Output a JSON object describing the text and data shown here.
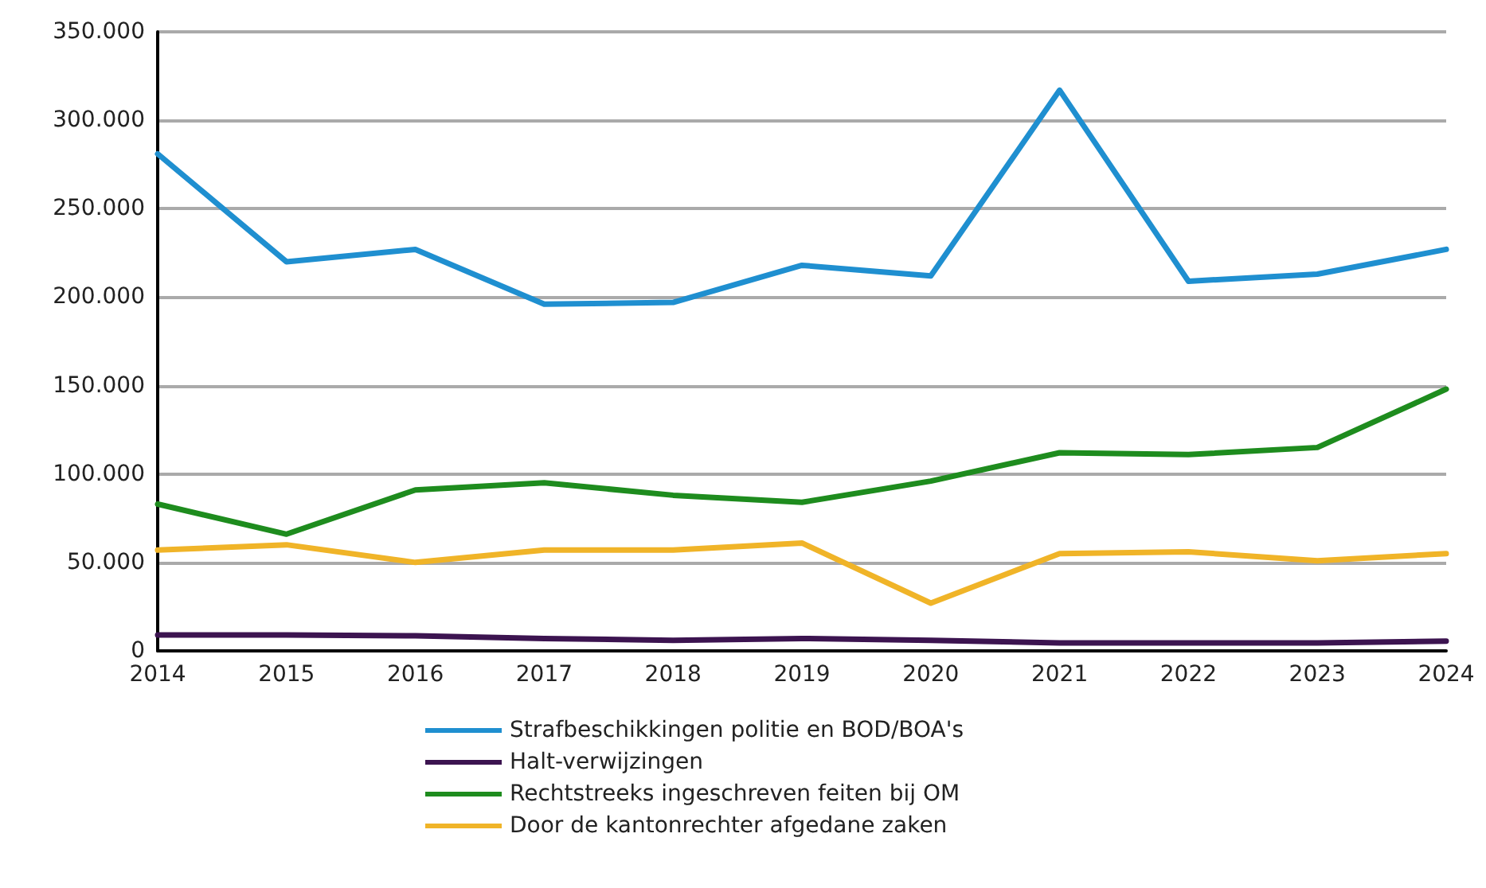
{
  "chart_data": {
    "type": "line",
    "x": [
      2014,
      2015,
      2016,
      2017,
      2018,
      2019,
      2020,
      2021,
      2022,
      2023,
      2024
    ],
    "series": [
      {
        "name": "Strafbeschikkingen politie en BOD/BOA's",
        "color": "#1f8fd0",
        "values": [
          281000,
          220000,
          227000,
          196000,
          197000,
          218000,
          212000,
          317000,
          209000,
          213000,
          227000
        ]
      },
      {
        "name": "Halt-verwijzingen",
        "color": "#3c1450",
        "values": [
          9000,
          9000,
          8500,
          7000,
          6000,
          7000,
          6000,
          4500,
          4500,
          4500,
          5500
        ]
      },
      {
        "name": "Rechtstreeks ingeschreven feiten bij OM",
        "color": "#1e8c1e",
        "values": [
          83000,
          66000,
          91000,
          95000,
          88000,
          84000,
          96000,
          112000,
          111000,
          115000,
          148000
        ]
      },
      {
        "name": "Door de kantonrechter afgedane zaken",
        "color": "#f0b428",
        "values": [
          57000,
          60000,
          50000,
          57000,
          57000,
          61000,
          27000,
          55000,
          56000,
          51000,
          55000
        ]
      }
    ],
    "xlim": [
      2014,
      2024
    ],
    "xticks": [
      2014,
      2015,
      2016,
      2017,
      2018,
      2019,
      2020,
      2021,
      2022,
      2023,
      2024
    ],
    "ylim": [
      0,
      350000
    ],
    "yticks": [
      0,
      {
        "value": 50000,
        "label": "50.000"
      },
      {
        "value": 100000,
        "label": "100.000"
      },
      {
        "value": 150000,
        "label": "150.000"
      },
      {
        "value": 200000,
        "label": "200.000"
      },
      {
        "value": 250000,
        "label": "250.000"
      },
      {
        "value": 300000,
        "label": "300.000"
      },
      {
        "value": 350000,
        "label": "350.000"
      }
    ],
    "grid": "y",
    "legend": "bottom",
    "marker": "none",
    "line_style": "solid"
  }
}
